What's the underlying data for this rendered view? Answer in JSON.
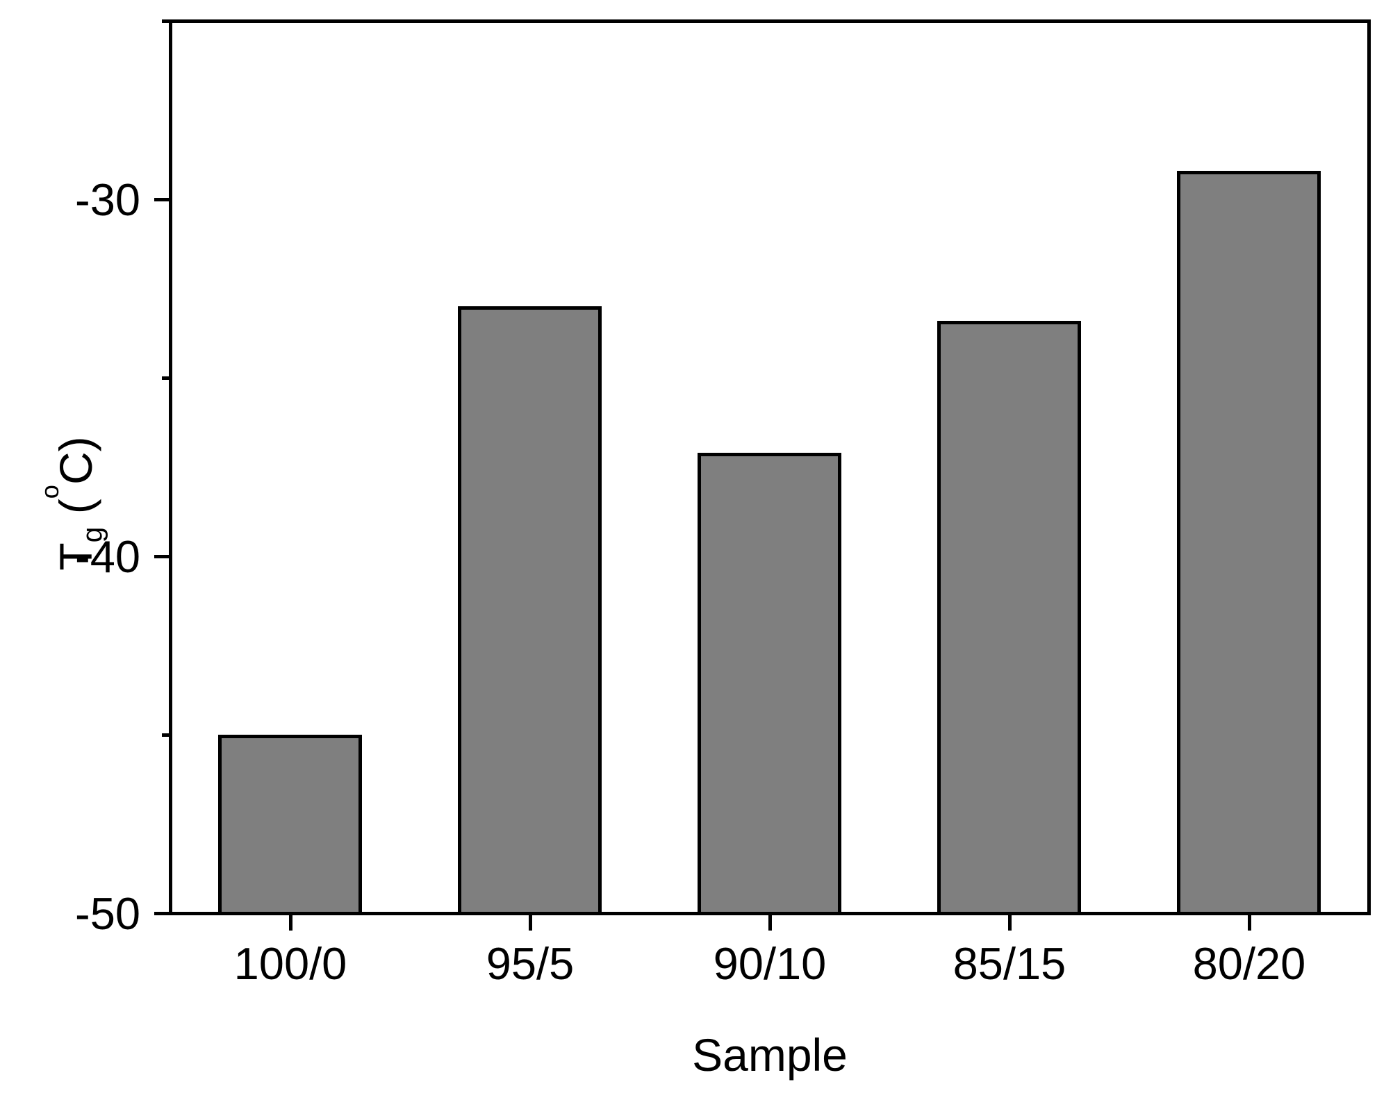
{
  "figure": {
    "background_color": "#FFFFFF",
    "axis_color": "#000000"
  },
  "chart_data": {
    "type": "bar",
    "title": "",
    "categories": [
      "100/0",
      "95/5",
      "90/10",
      "85/15",
      "80/20"
    ],
    "values": [
      -45.0,
      -33.0,
      -37.1,
      -33.4,
      -29.2
    ],
    "xlabel": "Sample",
    "ylabel": "Tg (°C)",
    "ylabel_parts": {
      "main": "T",
      "sub": "g",
      "pre_deg": " (",
      "deg": "o",
      "post_deg": "C)"
    },
    "ylim": [
      -50,
      -25
    ],
    "yticks_major": [
      -30,
      -40,
      -50
    ],
    "yticks_minor": [
      -25,
      -35,
      -45
    ],
    "bar_color": "#7F7F7F",
    "bar_edge_color": "#000000",
    "bar_width_fraction": 0.6,
    "grid": false,
    "legend": false
  }
}
